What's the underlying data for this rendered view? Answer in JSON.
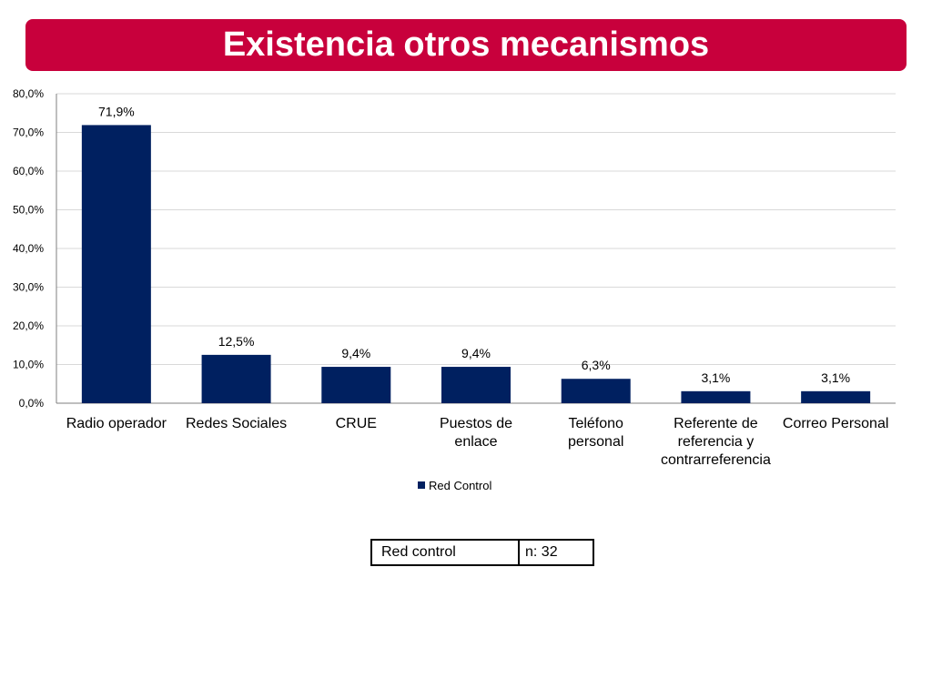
{
  "header": {
    "title": "Existencia otros mecanismos"
  },
  "chart_data": {
    "type": "bar",
    "title": "",
    "xlabel": "",
    "ylabel": "",
    "categories": [
      [
        "Radio operador"
      ],
      [
        "Redes Sociales"
      ],
      [
        "CRUE"
      ],
      [
        "Puestos de",
        "enlace"
      ],
      [
        "Teléfono",
        "personal"
      ],
      [
        "Referente de",
        "referencia y",
        "contrarreferencia"
      ],
      [
        "Correo Personal"
      ]
    ],
    "series": [
      {
        "name": "Red Control",
        "values": [
          71.9,
          12.5,
          9.4,
          9.4,
          6.3,
          3.1,
          3.1
        ],
        "labels": [
          "71,9%",
          "12,5%",
          "9,4%",
          "9,4%",
          "6,3%",
          "3,1%",
          "3,1%"
        ],
        "color": "#002060"
      }
    ],
    "ylim": [
      0,
      80
    ],
    "y_ticks": [
      0,
      10,
      20,
      30,
      40,
      50,
      60,
      70,
      80
    ],
    "y_tick_labels": [
      "0,0%",
      "10,0%",
      "20,0%",
      "30,0%",
      "40,0%",
      "50,0%",
      "60,0%",
      "70,0%",
      "80,0%"
    ],
    "grid": true,
    "legend_position": "bottom-center"
  },
  "info_table": {
    "label": "Red control",
    "value": "n: 32"
  },
  "colors": {
    "title_bar": "#c8003c",
    "bar": "#002060",
    "grid": "#d9d9d9",
    "axis": "#7f7f7f"
  }
}
